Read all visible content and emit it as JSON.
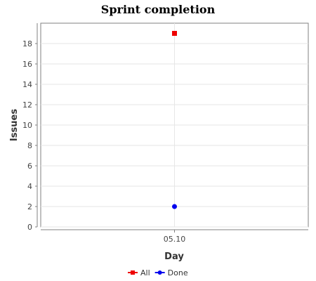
{
  "chart_data": {
    "type": "scatter",
    "title": "Sprint completion",
    "xlabel": "Day",
    "ylabel": "Issues",
    "categories": [
      "05.10"
    ],
    "ylim": [
      0,
      20
    ],
    "yticks": [
      0,
      2,
      4,
      6,
      8,
      10,
      12,
      14,
      16,
      18
    ],
    "grid": true,
    "legend_position": "bottom",
    "series": [
      {
        "name": "All",
        "values": [
          19
        ],
        "color": "#ee0000",
        "marker": "square"
      },
      {
        "name": "Done",
        "values": [
          2
        ],
        "color": "#0000ee",
        "marker": "circle"
      }
    ]
  }
}
